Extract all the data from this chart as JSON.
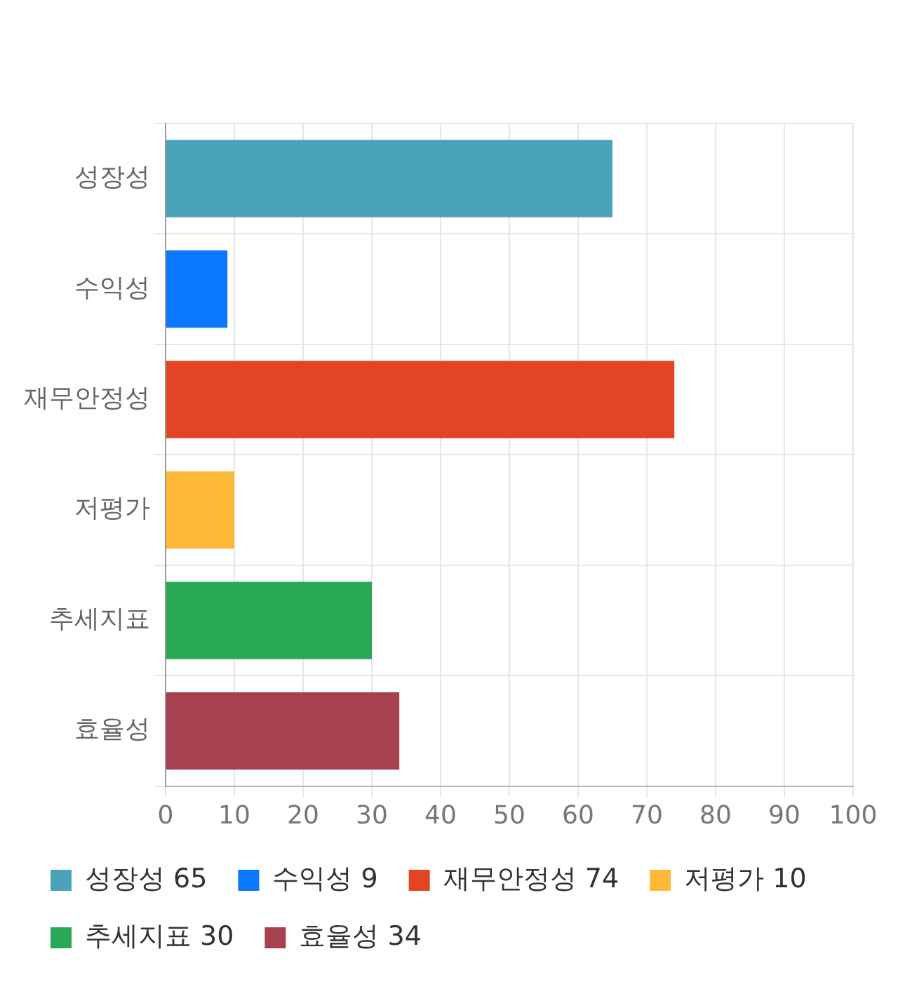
{
  "chart_data": {
    "type": "bar",
    "orientation": "horizontal",
    "stacked": true,
    "categories": [
      "성장성",
      "수익성",
      "재무안정성",
      "저평가",
      "추세지표",
      "효율성"
    ],
    "series": [
      {
        "name": "성장성 65",
        "color": "#4aa3ba",
        "values": [
          65,
          null,
          null,
          null,
          null,
          null
        ]
      },
      {
        "name": "수익성 9",
        "color": "#0a78fe",
        "values": [
          null,
          9,
          null,
          null,
          null,
          null
        ]
      },
      {
        "name": "재무안정성 74",
        "color": "#e24424",
        "values": [
          null,
          null,
          74,
          null,
          null,
          null
        ]
      },
      {
        "name": "저평가 10",
        "color": "#feb837",
        "values": [
          null,
          null,
          null,
          10,
          null,
          null
        ]
      },
      {
        "name": "추세지표 30",
        "color": "#29a856",
        "values": [
          null,
          null,
          null,
          null,
          30,
          null
        ]
      },
      {
        "name": "효율성 34",
        "color": "#a7414f",
        "values": [
          null,
          null,
          null,
          null,
          null,
          34
        ]
      }
    ],
    "xlim": [
      0,
      100
    ],
    "xticks": [
      0,
      10,
      20,
      30,
      40,
      50,
      60,
      70,
      80,
      90,
      100
    ],
    "grid": true,
    "legend": "bottom"
  }
}
